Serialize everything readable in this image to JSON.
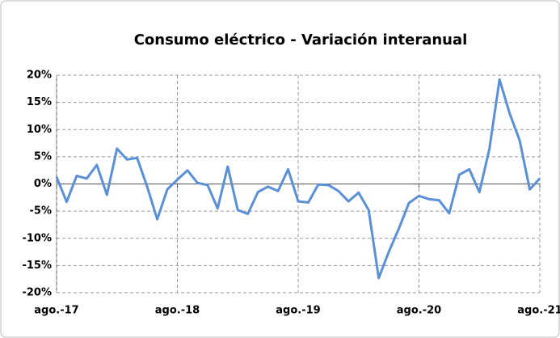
{
  "chart_data": {
    "type": "line",
    "title": "Consumo eléctrico - Variación interanual",
    "categories": [
      "ago.-17",
      null,
      null,
      null,
      null,
      null,
      null,
      null,
      null,
      null,
      null,
      null,
      "ago.-18",
      null,
      null,
      null,
      null,
      null,
      null,
      null,
      null,
      null,
      null,
      null,
      "ago.-19",
      null,
      null,
      null,
      null,
      null,
      null,
      null,
      null,
      null,
      null,
      null,
      "ago.-20",
      null,
      null,
      null,
      null,
      null,
      null,
      null,
      null,
      null,
      null,
      null,
      "ago.-21"
    ],
    "values": [
      1.3,
      -3.3,
      1.5,
      1.0,
      3.5,
      -2.0,
      6.5,
      4.5,
      4.8,
      -0.5,
      -6.5,
      -1.0,
      0.8,
      2.5,
      0.2,
      -0.2,
      -4.5,
      3.2,
      -4.8,
      -5.5,
      -1.5,
      -0.5,
      -1.3,
      2.7,
      -3.2,
      -3.4,
      -0.1,
      -0.2,
      -1.3,
      -3.2,
      -1.6,
      -4.8,
      -17.3,
      -12.5,
      -8.2,
      -3.5,
      -2.2,
      -2.8,
      -3.0,
      -5.4,
      1.7,
      2.7,
      -1.5,
      6.5,
      19.2,
      13.0,
      8.0,
      -1.0,
      1.0
    ],
    "color": "#5b8fd6",
    "ylim": [
      -20,
      20
    ],
    "yticks": [
      {
        "value": -20,
        "label": "-20%"
      },
      {
        "value": -15,
        "label": "-15%"
      },
      {
        "value": -10,
        "label": "-10%"
      },
      {
        "value": -5,
        "label": "-5%"
      },
      {
        "value": 0,
        "label": "0%"
      },
      {
        "value": 5,
        "label": "5%"
      },
      {
        "value": 10,
        "label": "10%"
      },
      {
        "value": 15,
        "label": "15%"
      },
      {
        "value": 20,
        "label": "20%"
      }
    ],
    "grid": true
  }
}
